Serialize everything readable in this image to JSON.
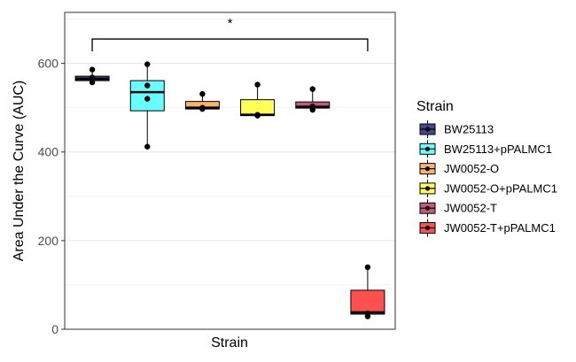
{
  "chart_data": {
    "type": "box",
    "xlabel": "Strain",
    "ylabel": "Area Under the Curve (AUC)",
    "ylim": [
      0,
      715
    ],
    "yticks": [
      0,
      200,
      400,
      600
    ],
    "grid": true,
    "legend": {
      "title": "Strain",
      "placement": "right"
    },
    "series": [
      {
        "name": "BW25113",
        "color": "#46468c",
        "box": {
          "min": 560,
          "q1": 561,
          "median": 565,
          "q3": 571,
          "max": 586
        },
        "points": [
          557,
          568,
          586
        ]
      },
      {
        "name": "BW25113+pPALMC1",
        "color": "#66ffff",
        "box": {
          "min": 412,
          "q1": 493,
          "median": 535,
          "q3": 561,
          "max": 598
        },
        "points": [
          412,
          520,
          550,
          598
        ]
      },
      {
        "name": "JW0052-O",
        "color": "#ffb366",
        "box": {
          "min": 497,
          "q1": 497,
          "median": 500,
          "q3": 514,
          "max": 531
        },
        "points": [
          497,
          500,
          531
        ]
      },
      {
        "name": "JW0052-O+pPALMC1",
        "color": "#ffff55",
        "box": {
          "min": 482,
          "q1": 482,
          "median": 484,
          "q3": 518,
          "max": 552
        },
        "points": [
          482,
          484,
          552
        ]
      },
      {
        "name": "JW0052-T",
        "color": "#c25a7c",
        "box": {
          "min": 495,
          "q1": 499,
          "median": 502,
          "q3": 513,
          "max": 542
        },
        "points": [
          495,
          503,
          542
        ]
      },
      {
        "name": "JW0052-T+pPALMC1",
        "color": "#ff5050",
        "box": {
          "min": 30,
          "q1": 34,
          "median": 38,
          "q3": 88,
          "max": 140
        },
        "points": [
          29,
          36,
          140
        ]
      }
    ],
    "annotations": [
      {
        "type": "significance-bracket",
        "from": "BW25113",
        "to": "JW0052-T+pPALMC1",
        "y": 655,
        "label": "*"
      }
    ]
  }
}
